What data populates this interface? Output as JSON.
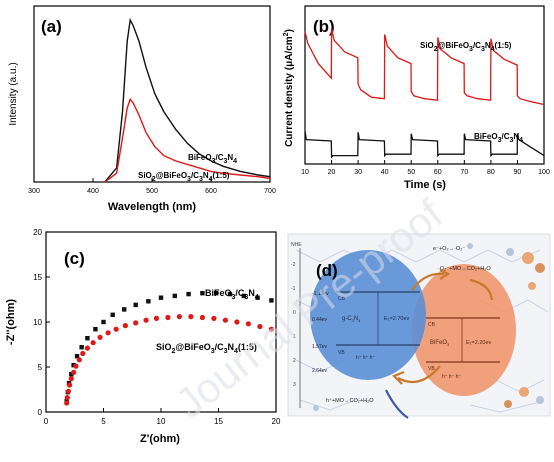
{
  "watermark": "Journal Pre-proof",
  "colors": {
    "black": "#111111",
    "red": "#e01818",
    "blue": "#5b8fd6",
    "orange": "#f0946a"
  },
  "chart_data": [
    {
      "panel": "(a)",
      "type": "line",
      "xlabel": "Wavelength (nm)",
      "ylabel": "Intensity (a.u.)",
      "xlim": [
        300,
        700
      ],
      "xticks": [
        300,
        400,
        500,
        600,
        700
      ],
      "series": [
        {
          "name": "BiFeO3/C3N4",
          "label_main": "BiFeO",
          "label_sub1": "3",
          "label_mid": "/C",
          "label_sub2": "3",
          "label_mid2": "N",
          "label_sub3": "4",
          "x": [
            420,
            440,
            450,
            458,
            463,
            468,
            478,
            490,
            505,
            520,
            540,
            560,
            580,
            600,
            620,
            650,
            680,
            700
          ],
          "y": [
            0.0,
            0.08,
            0.4,
            0.8,
            0.92,
            0.89,
            0.8,
            0.65,
            0.5,
            0.4,
            0.3,
            0.22,
            0.16,
            0.12,
            0.09,
            0.06,
            0.04,
            0.03
          ]
        },
        {
          "name": "SiO2@BiFeO3/C3N4(1:5)",
          "label_main": "SiO",
          "label_sub1": "2",
          "label_mid": "@BiFeO",
          "label_sub2": "3",
          "label_mid2": "/C",
          "label_sub3": "3",
          "label_tail": "N",
          "label_sub4": "4",
          "label_end": "(1:5)",
          "x": [
            420,
            440,
            450,
            458,
            463,
            468,
            478,
            490,
            505,
            520,
            540,
            560,
            580,
            600,
            620,
            650,
            680,
            700
          ],
          "y": [
            0.0,
            0.05,
            0.25,
            0.42,
            0.47,
            0.45,
            0.38,
            0.28,
            0.2,
            0.15,
            0.12,
            0.1,
            0.08,
            0.06,
            0.05,
            0.04,
            0.03,
            0.02
          ]
        }
      ]
    },
    {
      "panel": "(b)",
      "type": "line",
      "xlabel": "Time (s)",
      "ylabel": "Current density (μA/cm²)",
      "ylabel_main": "Current density (μA/cm",
      "ylabel_sup": "2",
      "ylabel_end": ")",
      "xlim": [
        10,
        100
      ],
      "xticks": [
        10,
        20,
        30,
        40,
        50,
        60,
        70,
        80,
        90,
        100
      ],
      "series": [
        {
          "name": "SiO2@BiFeO3/C3N4(1:5)",
          "label_main": "SiO",
          "label_sub1": "2",
          "label_mid": "@BiFeO",
          "label_sub2": "3",
          "label_mid2": "/C",
          "label_sub3": "3",
          "label_tail": "N",
          "label_sub4": "4",
          "label_end": "(1:5)",
          "x": [
            10,
            11,
            15,
            19.9,
            20,
            21,
            25,
            29.9,
            30,
            31,
            35,
            39.9,
            40,
            41,
            45,
            49.9,
            50,
            51,
            55,
            59.9,
            60,
            61,
            65,
            69.9,
            70,
            71,
            75,
            79.9,
            80,
            81,
            85,
            89.9,
            90,
            91,
            95,
            100
          ],
          "y": [
            0.88,
            0.8,
            0.66,
            0.56,
            0.9,
            0.82,
            0.74,
            0.7,
            0.52,
            0.48,
            0.43,
            0.42,
            0.86,
            0.78,
            0.7,
            0.66,
            0.47,
            0.44,
            0.42,
            0.41,
            0.84,
            0.76,
            0.7,
            0.66,
            0.46,
            0.44,
            0.42,
            0.41,
            0.83,
            0.75,
            0.69,
            0.65,
            0.44,
            0.42,
            0.4,
            0.38
          ]
        },
        {
          "name": "BiFeO3/C3N4",
          "label_main": "BiFeO",
          "label_sub1": "3",
          "label_mid": "/C",
          "label_sub2": "3",
          "label_mid2": "N",
          "label_sub3": "4",
          "x": [
            10,
            10.5,
            19.9,
            20,
            20.5,
            29.9,
            30,
            30.5,
            39.9,
            40,
            40.5,
            49.9,
            50,
            50.5,
            59.9,
            60,
            60.5,
            69.9,
            70,
            70.5,
            79.9,
            80,
            80.5,
            89.9,
            90,
            90.5,
            100
          ],
          "y": [
            0.2,
            0.14,
            0.13,
            0.02,
            0.03,
            0.03,
            0.19,
            0.14,
            0.13,
            0.03,
            0.04,
            0.04,
            0.18,
            0.14,
            0.13,
            0.03,
            0.04,
            0.04,
            0.18,
            0.14,
            0.13,
            0.03,
            0.04,
            0.04,
            0.18,
            0.14,
            0.03
          ]
        }
      ]
    },
    {
      "panel": "(c)",
      "type": "scatter",
      "xlabel": "Z'(ohm)",
      "ylabel": "-Z''(ohm)",
      "xlim": [
        0,
        20
      ],
      "ylim": [
        0,
        20
      ],
      "xticks": [
        0,
        5,
        10,
        15,
        20
      ],
      "yticks": [
        0,
        5,
        10,
        15,
        20
      ],
      "series": [
        {
          "name": "BiFeO3/C3N4",
          "label_main": "BiFeO",
          "label_sub1": "3",
          "label_mid": "/C",
          "label_sub2": "3",
          "label_mid2": "N",
          "label_sub3": "4",
          "marker": "square",
          "x": [
            1.8,
            1.9,
            2.0,
            2.2,
            2.4,
            2.7,
            3.1,
            3.6,
            4.3,
            5.0,
            5.8,
            6.8,
            7.8,
            8.9,
            10.0,
            11.2,
            12.4,
            13.6,
            14.8,
            16.0,
            17.2,
            18.4,
            19.6
          ],
          "y": [
            1.2,
            2.2,
            3.2,
            4.2,
            5.2,
            6.2,
            7.2,
            8.2,
            9.2,
            10.0,
            10.8,
            11.4,
            11.9,
            12.3,
            12.7,
            12.9,
            13.1,
            13.2,
            13.2,
            13.1,
            12.9,
            12.7,
            12.4
          ]
        },
        {
          "name": "SiO2@BiFeO3/C3N4(1:5)",
          "label_main": "SiO",
          "label_sub1": "2",
          "label_mid": "@BiFeO",
          "label_sub2": "3",
          "label_mid2": "/C",
          "label_sub3": "3",
          "label_tail": "N",
          "label_sub4": "4",
          "label_end": "(1:5)",
          "marker": "circle",
          "x": [
            1.8,
            1.85,
            1.95,
            2.05,
            2.2,
            2.4,
            2.6,
            2.9,
            3.2,
            3.6,
            4.1,
            4.7,
            5.4,
            6.1,
            6.9,
            7.8,
            8.7,
            9.6,
            10.6,
            11.6,
            12.6,
            13.6,
            14.6,
            15.6,
            16.6,
            17.6,
            18.6,
            19.6
          ],
          "y": [
            1.0,
            1.6,
            2.3,
            3.0,
            3.7,
            4.4,
            5.1,
            5.8,
            6.5,
            7.1,
            7.7,
            8.3,
            8.8,
            9.2,
            9.6,
            9.9,
            10.2,
            10.4,
            10.5,
            10.6,
            10.6,
            10.5,
            10.4,
            10.2,
            10.0,
            9.8,
            9.5,
            9.2
          ]
        }
      ]
    },
    {
      "panel": "(d)",
      "type": "diagram",
      "nhe_label": "NHE",
      "level_ticks": [
        "-2",
        "-1",
        "0",
        "1",
        "2",
        "3"
      ],
      "levels_left": [
        "-1.13ev",
        "0.44ev",
        "1.57ev",
        "2.64ev"
      ],
      "gcn": {
        "name_main": "g-C",
        "name_sub1": "3",
        "name_mid": "N",
        "name_sub2": "4",
        "eg": "E₁=2.70ev",
        "cb": "CB",
        "vb": "VB"
      },
      "bfo": {
        "name_main": "BiFeO",
        "name_sub": "3",
        "eg": "E₁=2.20ev",
        "cb": "CB",
        "vb": "VB"
      },
      "holes": "h⁺ h⁺ h⁺",
      "reaction_top1": "e⁻+O₂→·O₂⁻",
      "reaction_top2": "·O₂⁻+MO→CO₂+H₂O",
      "reaction_bottom": "h⁺+MO→CO₂+H₂O"
    }
  ]
}
